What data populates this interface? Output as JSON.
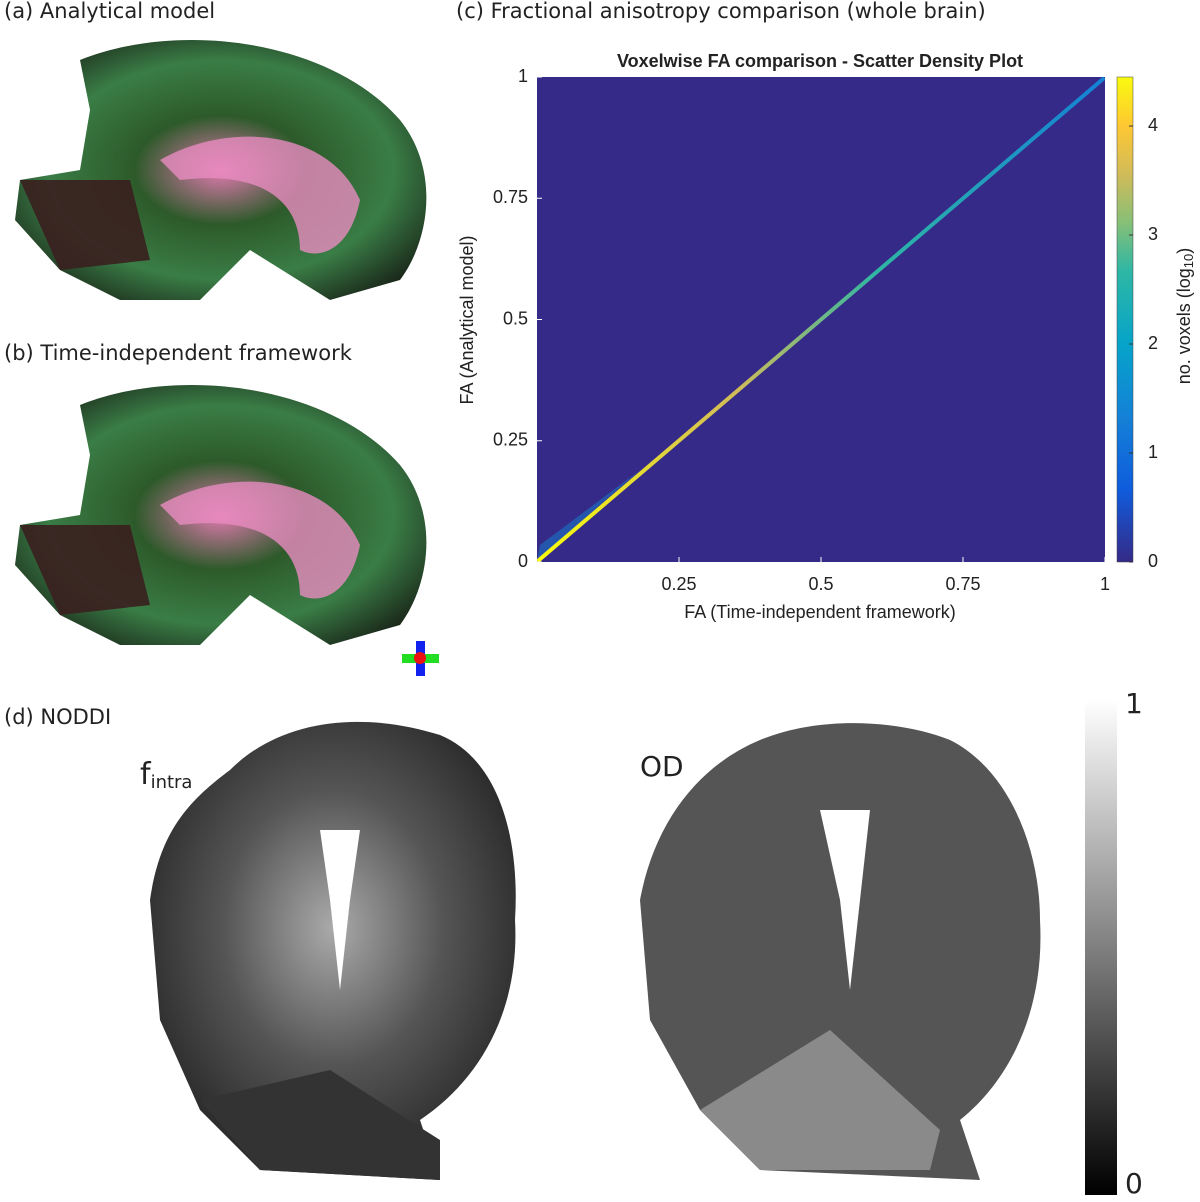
{
  "panels": {
    "a": "(a) Analytical model",
    "b": "(b) Time-independent framework",
    "c": "(c) Fractional anisotropy comparison (whole brain)",
    "d": "(d) NODDI"
  },
  "chart_data": {
    "type": "density",
    "title": "Voxelwise FA comparison - Scatter Density Plot",
    "xlabel": "FA (Time-independent framework)",
    "ylabel": "FA (Analytical model)",
    "xlim": [
      0,
      1
    ],
    "ylim": [
      0,
      1
    ],
    "xticks": [
      0.25,
      0.5,
      0.75,
      1
    ],
    "yticks": [
      0,
      0.25,
      0.5,
      0.75,
      1
    ],
    "colorbar": {
      "label": "no. voxels (log",
      "label_sub": "10",
      "label_end": ")",
      "lim": [
        0,
        4.45
      ],
      "ticks": [
        0,
        1,
        2,
        3,
        4
      ]
    }
  },
  "noddi": {
    "maps": [
      {
        "label": "f",
        "sub": "intra"
      },
      {
        "label": "OD"
      }
    ],
    "colorbar": {
      "lim": [
        0,
        1
      ],
      "ticks": [
        0,
        1
      ]
    }
  }
}
